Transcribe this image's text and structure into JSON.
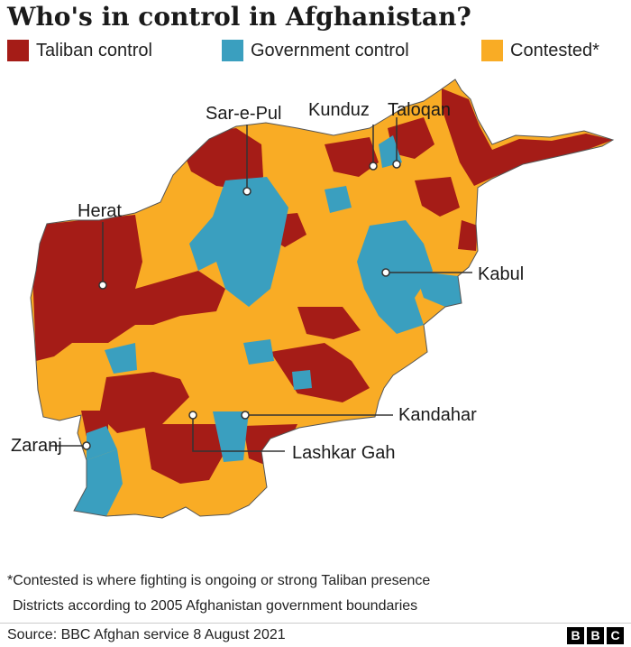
{
  "title": "Who's in control in Afghanistan?",
  "legend": [
    {
      "label": "Taliban control",
      "color": "#A51C17"
    },
    {
      "label": "Government control",
      "color": "#3A9FBF"
    },
    {
      "label": "Contested*",
      "color": "#F9AC25"
    }
  ],
  "places": [
    {
      "name": "Sar-e-Pul"
    },
    {
      "name": "Kunduz"
    },
    {
      "name": "Taloqan"
    },
    {
      "name": "Herat"
    },
    {
      "name": "Kabul"
    },
    {
      "name": "Kandahar"
    },
    {
      "name": "Zaranj"
    },
    {
      "name": "Lashkar Gah"
    }
  ],
  "notes": {
    "contested_note": "*Contested is where fighting is ongoing or strong Taliban presence",
    "districts_note": "Districts according to 2005 Afghanistan government boundaries"
  },
  "footer": {
    "source": "Source: BBC Afghan service 8 August 2021",
    "logo_letters": [
      "B",
      "B",
      "C"
    ]
  }
}
